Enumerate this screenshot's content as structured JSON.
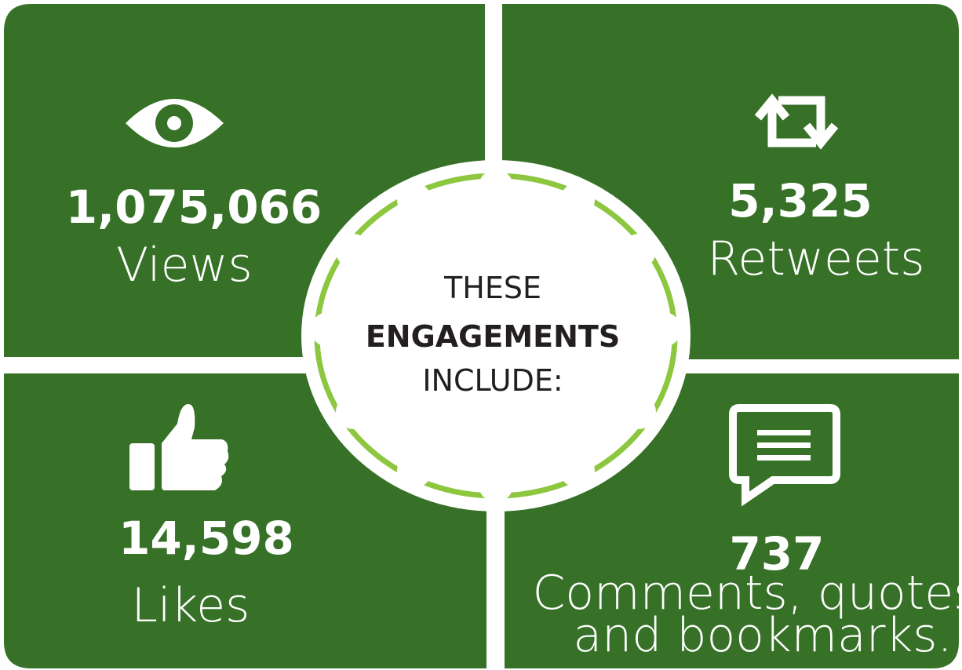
{
  "center": {
    "lines": [
      "THESE",
      "ENGAGEMENTS",
      "INCLUDE:"
    ]
  },
  "stats": [
    {
      "value": "1,075,066",
      "label": "Views"
    },
    {
      "value": "5,325",
      "label": "Retweets"
    },
    {
      "value": "14,598",
      "label": "Likes"
    },
    {
      "value": "737",
      "label": [
        "Comments, quotes,",
        "and bookmarks."
      ]
    }
  ]
}
